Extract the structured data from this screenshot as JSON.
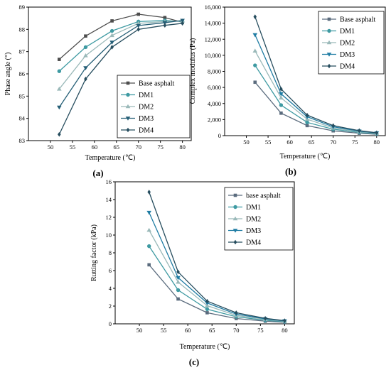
{
  "chart_data": [
    {
      "type": "line",
      "panel_label": "(a)",
      "xlabel": "Temperature (℃)",
      "ylabel": "Phase angle (°)",
      "x": [
        52,
        58,
        64,
        70,
        76,
        80
      ],
      "xlim": [
        45,
        82
      ],
      "ylim": [
        83,
        89
      ],
      "xticks": [
        50,
        55,
        60,
        65,
        70,
        75,
        80
      ],
      "yticks": [
        83,
        84,
        85,
        86,
        87,
        88,
        89
      ],
      "ytick_labels": [
        "83",
        "84",
        "85",
        "86",
        "87",
        "88",
        "89"
      ],
      "legend_position": "lower-right",
      "series": [
        {
          "name": "Base asphalt",
          "color": "#4d4d4d",
          "marker": "square",
          "values": [
            86.65,
            87.7,
            88.38,
            88.68,
            88.53,
            88.32
          ]
        },
        {
          "name": "DM1",
          "color": "#3e9aa2",
          "marker": "circle",
          "values": [
            86.12,
            87.2,
            87.93,
            88.35,
            88.4,
            88.35
          ]
        },
        {
          "name": "DM2",
          "color": "#9ab9b9",
          "marker": "triangle",
          "values": [
            85.32,
            86.82,
            87.73,
            88.27,
            88.35,
            88.38
          ]
        },
        {
          "name": "DM3",
          "color": "#245e76",
          "marker": "tridown",
          "values": [
            84.5,
            86.27,
            87.42,
            88.17,
            88.3,
            88.4
          ]
        },
        {
          "name": "DM4",
          "color": "#264d5e",
          "marker": "diamond",
          "values": [
            83.28,
            85.77,
            87.2,
            88.0,
            88.18,
            88.27
          ]
        }
      ]
    },
    {
      "type": "line",
      "panel_label": "(b)",
      "xlabel": "Temperature (℃)",
      "ylabel": "Complex modulus (Pa)",
      "x": [
        52,
        58,
        64,
        70,
        76,
        80
      ],
      "xlim": [
        45,
        82
      ],
      "ylim": [
        0,
        16000
      ],
      "xticks": [
        50,
        55,
        60,
        65,
        70,
        75,
        80
      ],
      "yticks": [
        0,
        2000,
        4000,
        6000,
        8000,
        10000,
        12000,
        14000,
        16000
      ],
      "ytick_labels": [
        "0",
        "2,000",
        "4,000",
        "6,000",
        "8,000",
        "10,000",
        "12,000",
        "14,000",
        "16,000"
      ],
      "legend_position": "top-right",
      "series": [
        {
          "name": "Base asphalt",
          "color": "#5a6b7d",
          "marker": "square",
          "values": [
            6650,
            2800,
            1250,
            600,
            300,
            170
          ]
        },
        {
          "name": "DM1",
          "color": "#3e9aa2",
          "marker": "circle",
          "values": [
            8750,
            3800,
            1650,
            800,
            400,
            250
          ]
        },
        {
          "name": "DM2",
          "color": "#9ab9b9",
          "marker": "triangle",
          "values": [
            10550,
            4700,
            2050,
            950,
            500,
            300
          ]
        },
        {
          "name": "DM3",
          "color": "#1f7ca3",
          "marker": "tridown",
          "values": [
            12550,
            5200,
            2350,
            1100,
            560,
            330
          ]
        },
        {
          "name": "DM4",
          "color": "#264d5e",
          "marker": "diamond",
          "values": [
            14800,
            5800,
            2550,
            1250,
            620,
            360
          ]
        }
      ]
    },
    {
      "type": "line",
      "panel_label": "(c)",
      "xlabel": "Temperature (℃)",
      "ylabel": "Rutting factor (kPa)",
      "x": [
        52,
        58,
        64,
        70,
        76,
        80
      ],
      "xlim": [
        45,
        82
      ],
      "ylim": [
        0,
        16
      ],
      "xticks": [
        50,
        55,
        60,
        65,
        70,
        75,
        80
      ],
      "yticks": [
        0,
        2,
        4,
        6,
        8,
        10,
        12,
        14,
        16
      ],
      "ytick_labels": [
        "0",
        "2",
        "4",
        "6",
        "8",
        "10",
        "12",
        "14",
        "16"
      ],
      "legend_position": "top-right",
      "series": [
        {
          "name": "base asphalt",
          "color": "#5a6b7d",
          "marker": "square",
          "values": [
            6.65,
            2.8,
            1.25,
            0.6,
            0.3,
            0.17
          ]
        },
        {
          "name": "DM1",
          "color": "#3e9aa2",
          "marker": "circle",
          "values": [
            8.75,
            3.8,
            1.65,
            0.8,
            0.4,
            0.25
          ]
        },
        {
          "name": "DM2",
          "color": "#9ab9b9",
          "marker": "triangle",
          "values": [
            10.55,
            4.7,
            2.05,
            0.95,
            0.5,
            0.3
          ]
        },
        {
          "name": "DM3",
          "color": "#1f7ca3",
          "marker": "tridown",
          "values": [
            12.55,
            5.2,
            2.35,
            1.1,
            0.56,
            0.33
          ]
        },
        {
          "name": "DM4",
          "color": "#264d5e",
          "marker": "diamond",
          "values": [
            14.85,
            5.85,
            2.55,
            1.25,
            0.62,
            0.36
          ]
        }
      ]
    }
  ]
}
